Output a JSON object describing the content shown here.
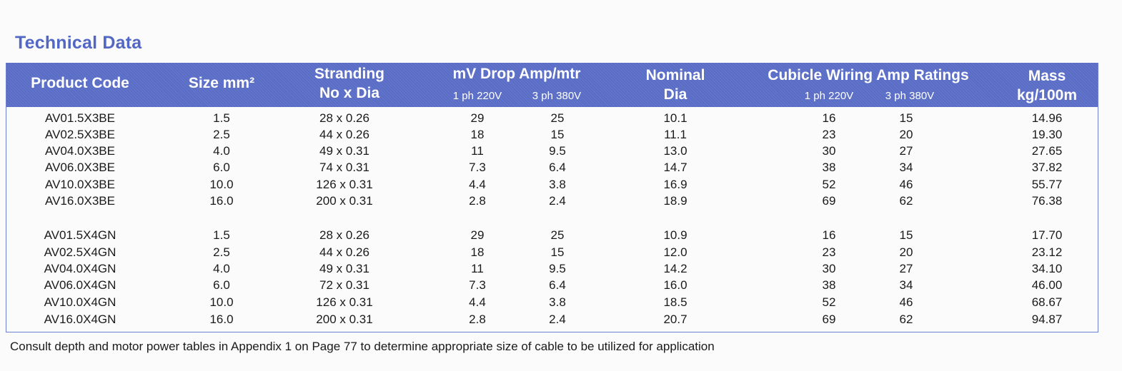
{
  "title": "Technical Data",
  "headers": {
    "product_code": "Product Code",
    "size": "Size mm²",
    "stranding_1": "Stranding",
    "stranding_2": "No x Dia",
    "mv_drop": "mV Drop Amp/mtr",
    "mv_1ph": "1 ph 220V",
    "mv_3ph": "3 ph 380V",
    "nominal_1": "Nominal",
    "nominal_2": "Dia",
    "cubicle": "Cubicle Wiring Amp Ratings",
    "cw_1ph": "1 ph 220V",
    "cw_3ph": "3 ph 380V",
    "mass_1": "Mass",
    "mass_2": "kg/100m"
  },
  "rows": [
    [
      "AV01.5X3BE",
      "1.5",
      "28 x 0.26",
      "29",
      "25",
      "10.1",
      "16",
      "15",
      "14.96"
    ],
    [
      "AV02.5X3BE",
      "2.5",
      "44 x 0.26",
      "18",
      "15",
      "11.1",
      "23",
      "20",
      "19.30"
    ],
    [
      "AV04.0X3BE",
      "4.0",
      "49 x 0.31",
      "11",
      "9.5",
      "13.0",
      "30",
      "27",
      "27.65"
    ],
    [
      "AV06.0X3BE",
      "6.0",
      "74 x 0.31",
      "7.3",
      "6.4",
      "14.7",
      "38",
      "34",
      "37.82"
    ],
    [
      "AV10.0X3BE",
      "10.0",
      "126 x 0.31",
      "4.4",
      "3.8",
      "16.9",
      "52",
      "46",
      "55.77"
    ],
    [
      "AV16.0X3BE",
      "16.0",
      "200 x 0.31",
      "2.8",
      "2.4",
      "18.9",
      "69",
      "62",
      "76.38"
    ],
    [
      "AV01.5X4GN",
      "1.5",
      "28 x 0.26",
      "29",
      "25",
      "10.9",
      "16",
      "15",
      "17.70"
    ],
    [
      "AV02.5X4GN",
      "2.5",
      "44 x 0.26",
      "18",
      "15",
      "12.0",
      "23",
      "20",
      "23.12"
    ],
    [
      "AV04.0X4GN",
      "4.0",
      "49 x 0.31",
      "11",
      "9.5",
      "14.2",
      "30",
      "27",
      "34.10"
    ],
    [
      "AV06.0X4GN",
      "6.0",
      "72 x 0.31",
      "7.3",
      "6.4",
      "16.0",
      "38",
      "34",
      "46.00"
    ],
    [
      "AV10.0X4GN",
      "10.0",
      "126 x 0.31",
      "4.4",
      "3.8",
      "18.5",
      "52",
      "46",
      "68.67"
    ],
    [
      "AV16.0X4GN",
      "16.0",
      "200 x 0.31",
      "2.8",
      "2.4",
      "20.7",
      "69",
      "62",
      "94.87"
    ]
  ],
  "footer": "Consult depth and motor power tables in Appendix 1 on Page 77 to determine appropriate size of cable to be utilized for application",
  "colors": {
    "header_bg": "#5a6dc6",
    "title": "#5266c4"
  }
}
